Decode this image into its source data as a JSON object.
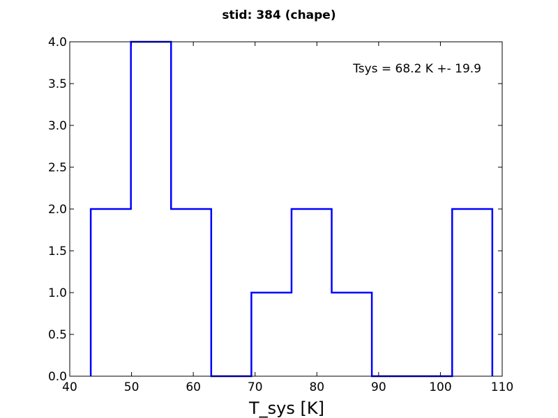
{
  "chart_data": {
    "type": "bar",
    "style": "step-histogram",
    "title": "stid: 384 (chape)",
    "xlabel": "T_sys [K]",
    "ylabel": "",
    "annotation": "Tsys = 68.2 K +- 19.9",
    "xlim": [
      40,
      110
    ],
    "ylim": [
      0.0,
      4.0
    ],
    "x_ticks": [
      40,
      50,
      60,
      70,
      80,
      90,
      100,
      110
    ],
    "x_tick_labels": [
      "40",
      "50",
      "60",
      "70",
      "80",
      "90",
      "100",
      "110"
    ],
    "y_ticks": [
      0.0,
      0.5,
      1.0,
      1.5,
      2.0,
      2.5,
      3.0,
      3.5,
      4.0
    ],
    "y_tick_labels": [
      "0.0",
      "0.5",
      "1.0",
      "1.5",
      "2.0",
      "2.5",
      "3.0",
      "3.5",
      "4.0"
    ],
    "bin_edges": [
      43.4,
      49.9,
      56.4,
      62.9,
      69.4,
      75.9,
      82.4,
      88.9,
      95.4,
      101.9,
      108.4
    ],
    "counts": [
      2,
      4,
      2,
      0,
      1,
      2,
      1,
      0,
      0,
      2
    ],
    "line_color": "#0000ff",
    "grid": false
  }
}
